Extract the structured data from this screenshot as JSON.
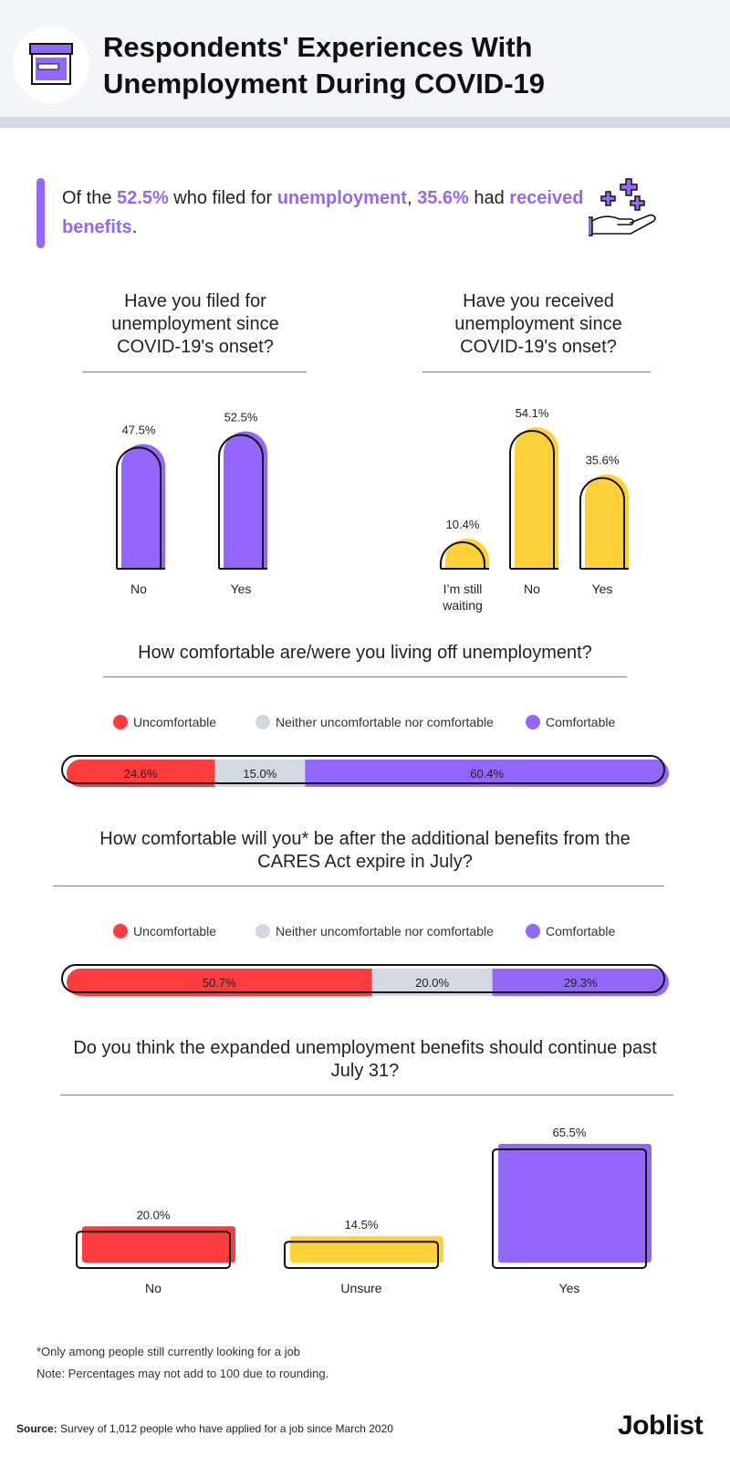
{
  "header": {
    "title_line1": "Respondents' Experiences With",
    "title_line2": "Unemployment During COVID-19",
    "icon": "archive-box-icon"
  },
  "callout": {
    "t1": "Of the ",
    "h1": "52.5%",
    "t2": " who filed for ",
    "h2": "unemployment",
    "t3": ", ",
    "h3": "35.6%",
    "t4": " had ",
    "h4": "received benefits",
    "t5": ".",
    "icon": "hand-with-plus-signs-icon"
  },
  "colors": {
    "purple": "#9467fb",
    "yellow": "#fdd13a",
    "red": "#fd3c3d",
    "gray": "#d3d9e3",
    "outline": "#111111"
  },
  "legend": {
    "uncomfortable": "Uncomfortable",
    "neither": "Neither uncomfortable nor comfortable",
    "comfortable": "Comfortable"
  },
  "chart_data": [
    {
      "type": "bar",
      "title": "Have you filed for unemployment since COVID-19's onset?",
      "categories": [
        "No",
        "Yes"
      ],
      "values": [
        47.5,
        52.5
      ],
      "labels": [
        "47.5%",
        "52.5%"
      ],
      "color": "#9467fb"
    },
    {
      "type": "bar",
      "title": "Have you received unemployment since COVID-19's onset?",
      "categories": [
        "I’m still waiting",
        "No",
        "Yes"
      ],
      "values": [
        10.4,
        54.1,
        35.6
      ],
      "labels": [
        "10.4%",
        "54.1%",
        "35.6%"
      ],
      "color": "#fdd13a"
    },
    {
      "type": "bar",
      "orientation": "stacked-horizontal",
      "title": "How comfortable are/were you living off unemployment?",
      "series": [
        {
          "name": "Uncomfortable",
          "value": 24.6,
          "label": "24.6%",
          "color": "#fd3c3d"
        },
        {
          "name": "Neither uncomfortable nor comfortable",
          "value": 15.0,
          "label": "15.0%",
          "color": "#d3d9e3"
        },
        {
          "name": "Comfortable",
          "value": 60.4,
          "label": "60.4%",
          "color": "#9467fb"
        }
      ]
    },
    {
      "type": "bar",
      "orientation": "stacked-horizontal",
      "title": "How comfortable will you* be after the additional benefits from the CARES Act expire in July?",
      "series": [
        {
          "name": "Uncomfortable",
          "value": 50.7,
          "label": "50.7%",
          "color": "#fd3c3d"
        },
        {
          "name": "Neither uncomfortable nor comfortable",
          "value": 20.0,
          "label": "20.0%",
          "color": "#d3d9e3"
        },
        {
          "name": "Comfortable",
          "value": 29.3,
          "label": "29.3%",
          "color": "#9467fb"
        }
      ]
    },
    {
      "type": "bar",
      "title": "Do you think the expanded unemployment benefits should continue past July 31?",
      "categories": [
        "No",
        "Unsure",
        "Yes"
      ],
      "values": [
        20.0,
        14.5,
        65.5
      ],
      "labels": [
        "20.0%",
        "14.5%",
        "65.5%"
      ],
      "colors": [
        "#fd3c3d",
        "#fdd13a",
        "#9467fb"
      ]
    }
  ],
  "questions": {
    "q1": "Have you filed for unemployment since COVID-19's onset?",
    "q2": "Have you received unemployment since COVID-19's onset?",
    "q3": "How comfortable are/were you living off unemployment?",
    "q4": "How comfortable will you* be after the additional benefits from the CARES Act expire in July?",
    "q5": "Do you think the expanded unemployment benefits should continue past July 31?"
  },
  "footer": {
    "footnote": "*Only among people still currently looking for a job",
    "note": "Note: Percentages may not add to 100 due to rounding.",
    "source_label": "Source:",
    "source_text": " Survey of 1,012 people who have applied for a job since March 2020",
    "brand": "Joblist"
  }
}
